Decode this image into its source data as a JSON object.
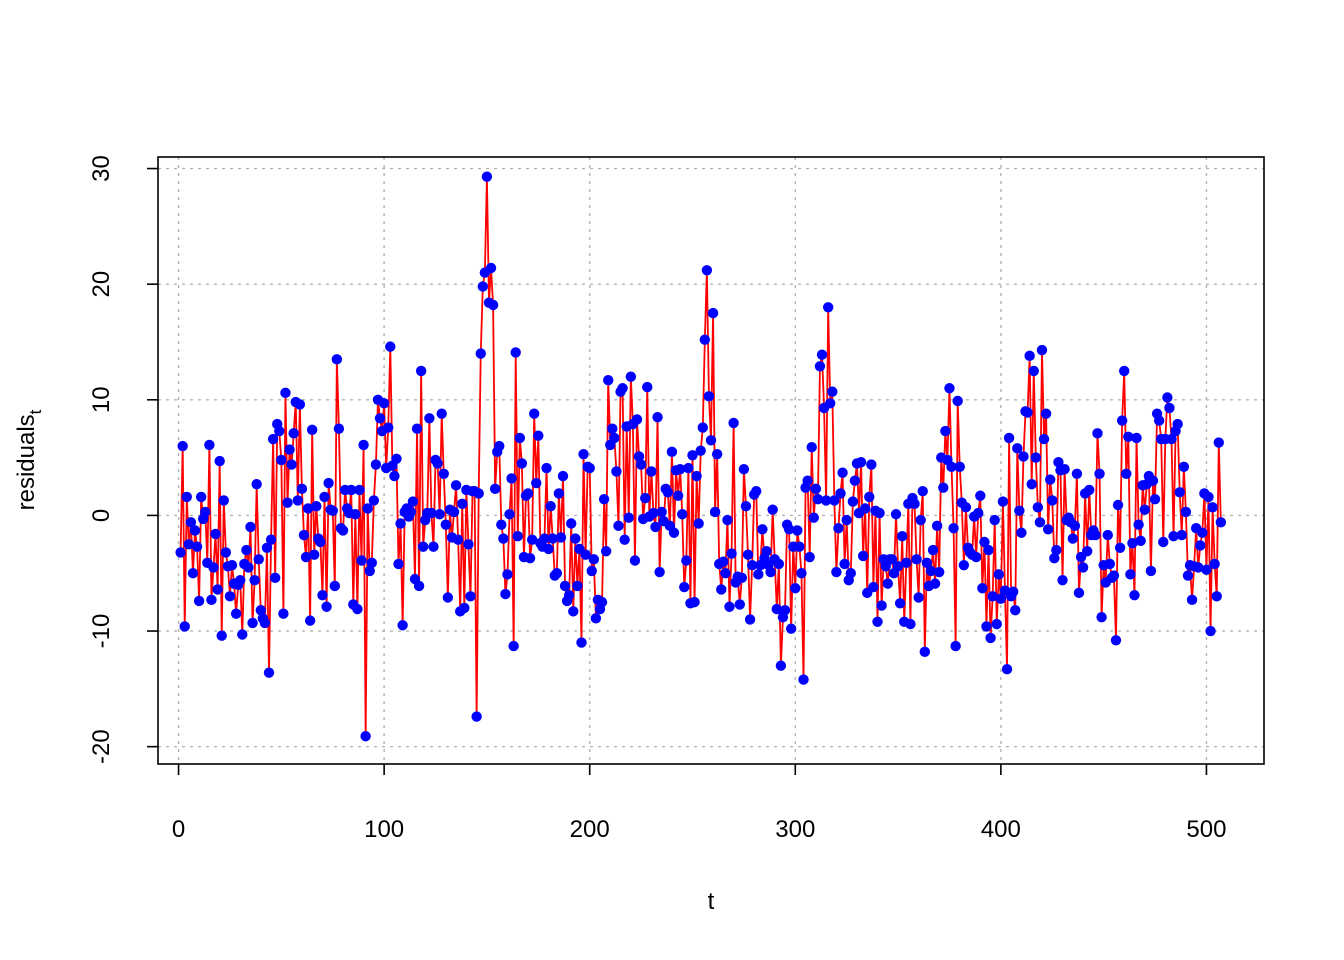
{
  "chart_data": {
    "type": "line",
    "title": "",
    "xlabel": "t",
    "ylabel_main": "residuals",
    "ylabel_sub": "t",
    "xlim": [
      -10,
      528
    ],
    "ylim": [
      -21.5,
      31.0
    ],
    "x_ticks": [
      0,
      100,
      200,
      300,
      400,
      500
    ],
    "y_ticks": [
      -20,
      -10,
      0,
      10,
      20,
      30
    ],
    "grid": true,
    "line_color": "#ff0000",
    "point_color": "#0000ff",
    "x_start": 1,
    "series": [
      {
        "values": [
          -3.2,
          6.0,
          -9.6,
          1.6,
          -2.5,
          -0.6,
          -5.0,
          -1.3,
          -2.7,
          -7.4,
          1.6,
          -0.3,
          0.3,
          -4.1,
          6.1,
          -7.3,
          -4.5,
          -1.6,
          -6.4,
          4.7,
          -10.4,
          1.3,
          -3.2,
          -4.4,
          -7.0,
          -4.3,
          -5.9,
          -8.5,
          -6.0,
          -5.6,
          -10.3,
          -4.2,
          -3.0,
          -4.5,
          -1.0,
          -9.3,
          -5.6,
          2.7,
          -3.8,
          -8.2,
          -8.9,
          -9.3,
          -2.8,
          -13.6,
          -2.1,
          6.6,
          -5.4,
          7.9,
          7.3,
          4.8,
          -8.5,
          10.6,
          1.1,
          5.7,
          4.4,
          7.1,
          9.8,
          1.3,
          9.6,
          2.3,
          -1.7,
          -3.6,
          0.6,
          -9.1,
          7.4,
          -3.4,
          0.8,
          -2.0,
          -2.3,
          -6.9,
          1.6,
          -7.9,
          2.8,
          0.5,
          0.4,
          -6.1,
          13.5,
          7.5,
          -1.1,
          -1.3,
          2.2,
          0.6,
          0.2,
          2.2,
          -7.7,
          0.1,
          -8.1,
          2.2,
          -3.9,
          6.1,
          -19.1,
          0.6,
          -4.8,
          -4.1,
          1.3,
          4.4,
          10.0,
          8.4,
          7.3,
          9.7,
          4.1,
          7.6,
          14.6,
          4.3,
          3.4,
          4.9,
          -4.2,
          -0.7,
          -9.5,
          0.3,
          0.6,
          -0.1,
          0.3,
          1.2,
          -5.5,
          7.5,
          -6.1,
          12.5,
          -2.7,
          -0.4,
          0.2,
          8.4,
          0.2,
          -2.7,
          4.8,
          4.5,
          0.1,
          8.8,
          3.6,
          -0.8,
          -7.1,
          0.5,
          -1.9,
          0.3,
          2.6,
          -2.1,
          -8.3,
          1.0,
          -8.0,
          2.2,
          -2.5,
          -7.0,
          2.1,
          2.1,
          -17.4,
          1.9,
          14.0,
          19.8,
          21.0,
          29.3,
          18.4,
          21.4,
          18.2,
          2.3,
          5.5,
          6.0,
          -0.8,
          -2.0,
          -6.8,
          -5.1,
          0.1,
          3.2,
          -11.3,
          14.1,
          -1.8,
          6.7,
          4.5,
          -3.6,
          1.7,
          1.9,
          -3.7,
          -2.1,
          8.8,
          2.8,
          6.9,
          -2.4,
          -2.7,
          -2.0,
          4.1,
          -2.9,
          0.8,
          -2.0,
          -5.2,
          -5.0,
          1.9,
          -1.9,
          3.4,
          -6.1,
          -7.4,
          -6.9,
          -0.7,
          -8.3,
          -2.0,
          -6.1,
          -2.9,
          -11.0,
          5.3,
          -3.4,
          4.2,
          4.1,
          -4.8,
          -3.8,
          -8.9,
          -7.3,
          -8.1,
          -7.5,
          1.4,
          -3.1,
          11.7,
          6.1,
          7.5,
          6.7,
          3.8,
          -0.9,
          10.7,
          11.0,
          -2.1,
          7.7,
          -0.2,
          12.0,
          7.9,
          -3.9,
          8.3,
          5.1,
          4.4,
          -0.3,
          1.5,
          11.1,
          -0.1,
          3.8,
          0.2,
          -1.0,
          8.5,
          -4.9,
          0.3,
          -0.5,
          2.3,
          2.0,
          -0.9,
          5.5,
          -1.5,
          3.9,
          1.7,
          4.0,
          0.1,
          -6.2,
          -3.9,
          4.1,
          -7.6,
          5.2,
          -7.5,
          3.4,
          -0.7,
          5.6,
          7.6,
          15.2,
          21.2,
          10.3,
          6.5,
          17.5,
          0.3,
          5.3,
          -4.2,
          -6.4,
          -4.0,
          -5.0,
          -0.4,
          -7.9,
          -3.3,
          8.0,
          -5.8,
          -5.3,
          -7.7,
          -5.4,
          4.0,
          0.8,
          -3.4,
          -9.0,
          -4.3,
          1.8,
          2.1,
          -5.1,
          -4.3,
          -1.2,
          -3.7,
          -3.1,
          -4.3,
          -4.9,
          0.5,
          -3.8,
          -8.1,
          -4.2,
          -13.0,
          -8.8,
          -8.2,
          -0.8,
          -1.2,
          -9.8,
          -2.7,
          -6.3,
          -1.3,
          -2.7,
          -5.0,
          -14.2,
          2.4,
          3.0,
          -3.6,
          5.9,
          -0.2,
          2.3,
          1.4,
          12.9,
          13.9,
          9.3,
          1.3,
          18.0,
          9.7,
          10.7,
          1.3,
          -4.9,
          -1.1,
          1.9,
          3.7,
          -4.2,
          -0.4,
          -5.6,
          -5.0,
          1.2,
          3.0,
          4.5,
          0.2,
          4.6,
          -3.5,
          0.6,
          -6.7,
          1.6,
          4.4,
          -6.2,
          0.4,
          -9.2,
          0.2,
          -7.8,
          -3.8,
          -4.4,
          -5.9,
          -3.8,
          -3.8,
          -5.0,
          0.1,
          -4.4,
          -7.6,
          -1.8,
          -9.2,
          -4.1,
          1.0,
          -9.4,
          1.5,
          1.0,
          -3.8,
          -7.1,
          -0.4,
          2.1,
          -11.8,
          -4.1,
          -6.1,
          -4.8,
          -3.0,
          -5.9,
          -0.9,
          -4.9,
          5.0,
          2.4,
          7.3,
          4.8,
          11.0,
          4.2,
          -1.1,
          -11.3,
          9.9,
          4.2,
          1.1,
          -4.3,
          0.7,
          -2.8,
          -3.2,
          -3.4,
          -0.1,
          -3.6,
          0.2,
          1.7,
          -6.3,
          -2.3,
          -9.6,
          -3.0,
          -10.6,
          -7.0,
          -0.4,
          -9.4,
          -5.1,
          -7.2,
          1.2,
          -6.5,
          -13.3,
          6.7,
          -7.0,
          -6.6,
          -8.2,
          5.8,
          0.4,
          -1.5,
          5.1,
          9.0,
          8.9,
          13.8,
          2.7,
          12.5,
          5.0,
          0.7,
          -0.6,
          14.3,
          6.6,
          8.8,
          -1.2,
          3.1,
          1.3,
          -3.7,
          -3.0,
          4.6,
          3.9,
          -5.6,
          4.0,
          -0.4,
          -0.2,
          -0.6,
          -2.0,
          -0.9,
          3.6,
          -6.7,
          -3.6,
          -4.5,
          1.9,
          -3.1,
          2.2,
          -1.7,
          -1.3,
          -1.7,
          7.1,
          3.6,
          -8.8,
          -4.3,
          -5.8,
          -1.7,
          -4.2,
          -5.4,
          -5.2,
          -10.8,
          0.9,
          -2.8,
          8.2,
          12.5,
          3.6,
          6.8,
          -5.1,
          -2.4,
          -6.9,
          6.7,
          -0.8,
          -2.2,
          2.6,
          0.5,
          2.7,
          3.4,
          -4.8,
          3.0,
          1.4,
          8.8,
          8.2,
          6.6,
          -2.3,
          6.6,
          10.2,
          9.3,
          6.6,
          -1.8,
          7.3,
          7.9,
          2.0,
          -1.7,
          4.2,
          0.3,
          -5.2,
          -4.3,
          -7.3,
          -4.4,
          -1.1,
          -4.5,
          -2.6,
          -1.5,
          1.9,
          -4.7,
          1.6,
          -10.0,
          0.7,
          -4.2,
          -7.0,
          6.3,
          -0.6
        ]
      }
    ]
  }
}
